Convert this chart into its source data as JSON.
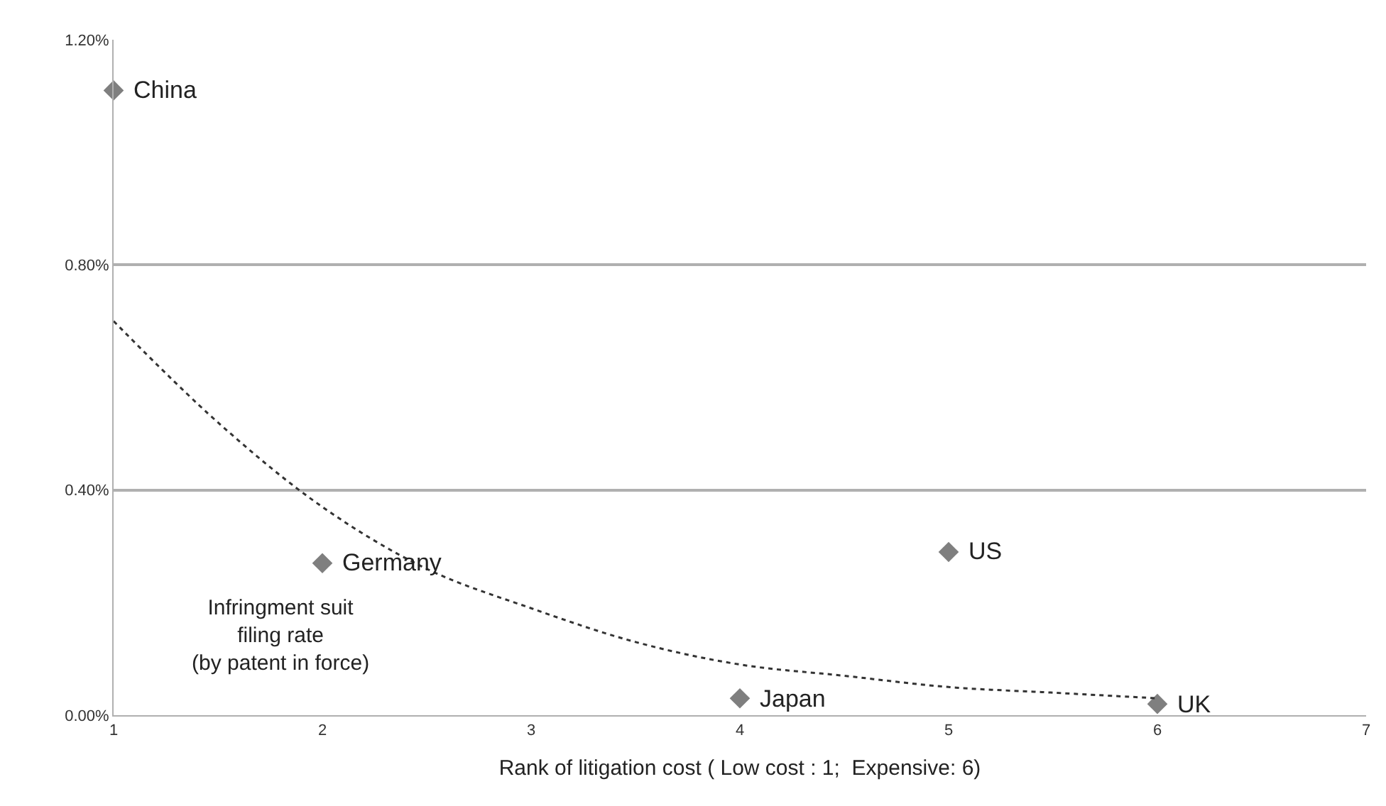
{
  "chart_data": {
    "type": "scatter",
    "xlabel": "Rank of litigation cost ( Low cost : 1;  Expensive: 6)",
    "ylabel": "Infringment suit\nfiling rate\n(by patent in force)",
    "series": [
      {
        "color": "#7f7f7f",
        "marker": "diamond",
        "x": [
          1,
          2,
          4,
          5,
          6
        ],
        "values": [
          1.11,
          0.27,
          0.03,
          0.29,
          0.02
        ]
      },
      {
        "type": "line",
        "color": "#333333",
        "marker": "none",
        "line_style": "dotted",
        "x": [
          1,
          1.5,
          2,
          2.5,
          3,
          3.5,
          4,
          4.5,
          5,
          5.5,
          6
        ],
        "values": [
          0.7,
          0.52,
          0.37,
          0.26,
          0.19,
          0.13,
          0.09,
          0.07,
          0.05,
          0.04,
          0.03
        ]
      }
    ],
    "annotations": [
      {
        "text": "China",
        "x": 1,
        "y": 1.11
      },
      {
        "text": "Germany",
        "x": 2,
        "y": 0.27
      },
      {
        "text": "Japan",
        "x": 4,
        "y": 0.03
      },
      {
        "text": "US",
        "x": 5,
        "y": 0.29
      },
      {
        "text": "UK",
        "x": 6,
        "y": 0.02
      }
    ],
    "xlim": [
      1,
      7
    ],
    "xticks": [
      1,
      2,
      3,
      4,
      5,
      6,
      7
    ],
    "ylim": [
      0,
      1.2
    ],
    "yticks": [
      {
        "value": 0,
        "label": "0.00%"
      },
      {
        "value": 0.4,
        "label": "0.40%"
      },
      {
        "value": 0.8,
        "label": "0.80%"
      },
      {
        "value": 1.2,
        "label": "1.20%"
      }
    ],
    "grid": "y",
    "legend": false
  }
}
